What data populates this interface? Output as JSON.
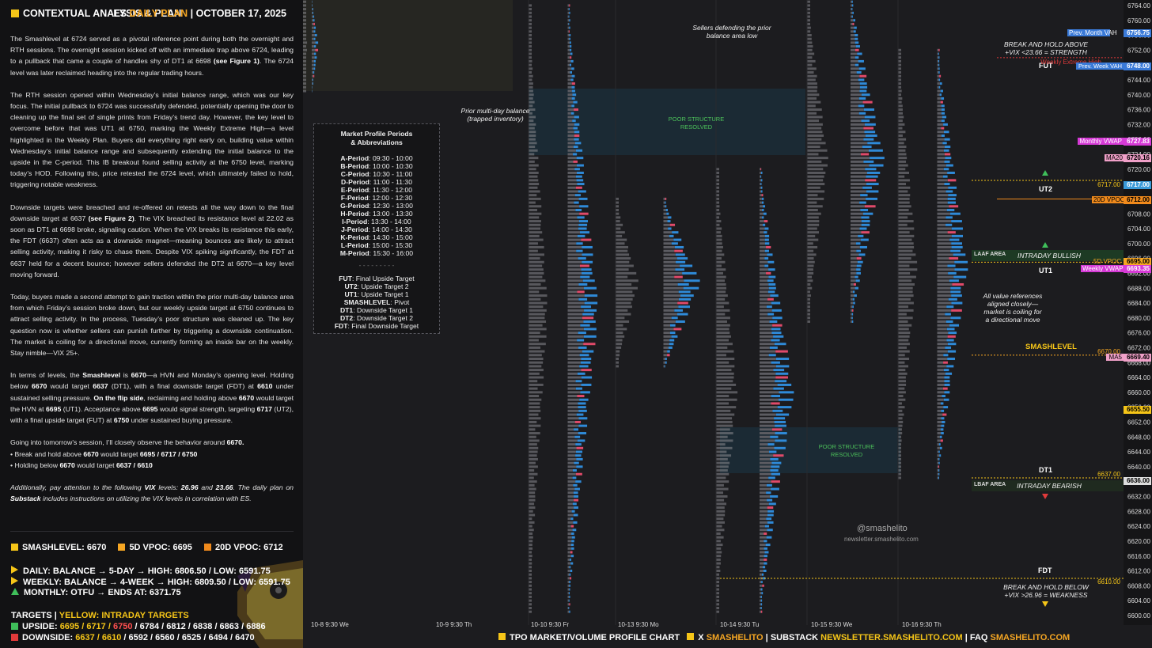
{
  "header": {
    "title": "CONTEXTUAL ANALYSIS & PLAN",
    "es": "ES",
    "daily_plan": "DAILY PLAN",
    "date": "OCTOBER 17, 2025"
  },
  "body": {
    "p1_a": "The Smashlevel at 6724 served as a pivotal reference point during both the overnight and RTH sessions. The overnight session kicked off with an immediate trap above 6724, leading to a pullback that came a couple of handles shy of DT1 at 6698 ",
    "p1_b": "(see Figure 1)",
    "p1_c": ". The 6724 level was later reclaimed heading into the regular trading hours.",
    "p2": "The RTH session opened within Wednesday’s initial balance range, which was our key focus. The initial pullback to 6724 was successfully defended, potentially opening the door to cleaning up the final set of single prints from Friday’s trend day. However, the key level to overcome before that was UT1 at 6750, marking the Weekly Extreme High—a level highlighted in the Weekly Plan. Buyers did everything right early on, building value within Wednesday’s initial balance range and subsequently extending the initial balance to the upside in the C-period. This IB breakout found selling activity at the 6750 level, marking today’s HOD. Following this, price retested the 6724 level, which ultimately failed to hold, triggering notable weakness.",
    "p3_a": "Downside targets were breached and re-offered on retests all the way down to the final downside target at 6637 ",
    "p3_b": "(see Figure 2)",
    "p3_c": ". The VIX breached its resistance level at 22.02 as soon as DT1 at 6698 broke, signaling caution. When the VIX breaks its resistance this early, the FDT (6637) often acts as a downside magnet—meaning bounces are likely to attract selling activity, making it risky to chase them. Despite VIX spiking significantly, the FDT at 6637 held for a decent bounce; however sellers defended the DT2 at 6670—a key level moving forward.",
    "p4": "Today, buyers made a second attempt to gain traction within the prior multi-day balance area from which Friday’s session broke down, but our weekly upside target at 6750 continues to attract selling activity. In the process, Tuesday’s poor structure was cleaned up. The key question now is whether sellers can punish further by triggering a downside continuation. The market is coiling for a directional move, currently forming an inside bar on the weekly. Stay nimble—VIX 25+.",
    "p5_a": "In terms of levels, the ",
    "p5_b": "Smashlevel",
    "p5_c": " is ",
    "p5_d": "6670",
    "p5_e": "—a HVN and Monday’s opening level. Holding below ",
    "p5_f": "6670",
    "p5_g": " would target ",
    "p5_h": "6637",
    "p5_i": " (DT1), with a final downside target (FDT) at ",
    "p5_j": "6610",
    "p5_k": " under sustained selling pressure. ",
    "p5_l": "On the flip side",
    "p5_m": ", reclaiming and holding above ",
    "p5_n": "6670",
    "p5_o": " would target the HVN at ",
    "p5_p": "6695",
    "p5_q": " (UT1). Acceptance above ",
    "p5_r": "6695",
    "p5_s": " would signal strength, targeting ",
    "p5_t": "6717",
    "p5_u": " (UT2), with a final upside target (FUT) at ",
    "p5_v": "6750",
    "p5_w": " under sustained buying pressure.",
    "p6_a": "Going into tomorrow’s session, I’ll closely observe the behavior around ",
    "p6_b": "6670.",
    "p6_c": "• Break and hold above ",
    "p6_d": "6670",
    "p6_e": " would target ",
    "p6_f": "6695 / 6717 / 6750",
    "p6_g": "• Holding below ",
    "p6_h": "6670",
    "p6_i": " would target ",
    "p6_j": "6637 / 6610",
    "p7_a": "Additionally, pay attention to the following ",
    "p7_b": "VIX",
    "p7_c": " levels: ",
    "p7_d": "26.96",
    "p7_e": " and ",
    "p7_f": "23.66",
    "p7_g": ". The daily plan on ",
    "p7_h": "Substack",
    "p7_i": " includes instructions on utilizing the VIX levels in correlation with ES."
  },
  "levels": {
    "smash": "SMASHLEVEL: 6670",
    "vpoc5": "5D VPOC: 6695",
    "vpoc20": "20D VPOC: 6712",
    "smash_color": "#f5c518",
    "vpoc5_color": "#f5a623",
    "vpoc20_color": "#f08a1c"
  },
  "balances": {
    "daily": "DAILY: BALANCE → 5-DAY → HIGH: 6806.50 / LOW: 6591.75",
    "weekly": "WEEKLY: BALANCE → 4-WEEK → HIGH: 6809.50 / LOW: 6591.75",
    "monthly": "MONTHLY: OTFU → ENDS AT: 6371.75"
  },
  "targets": {
    "title_a": "TARGETS",
    "title_b": "YELLOW: INTRADAY TARGETS",
    "up_label": "UPSIDE:",
    "up_1": "6695 / 6717 /",
    "up_2": "6750",
    "up_3": "/ 6784 / 6812 / 6838 / 6863 / 6886",
    "down_label": "DOWNSIDE:",
    "down_1": "6637 / 6610",
    "down_2": "/ 6592 / 6560 / 6525 / 6494 / 6470"
  },
  "legend": {
    "title_1": "Market Profile Periods",
    "title_2": "& Abbreviations",
    "periods": [
      [
        "A-Period",
        "09:30 - 10:00"
      ],
      [
        "B-Period",
        "10:00 - 10:30"
      ],
      [
        "C-Period",
        "10:30 - 11:00"
      ],
      [
        "D-Period",
        "11:00 - 11:30"
      ],
      [
        "E-Period",
        "11:30 - 12:00"
      ],
      [
        "F-Period",
        "12:00 - 12:30"
      ],
      [
        "G-Period",
        "12:30 - 13:00"
      ],
      [
        "H-Period",
        "13:00 - 13:30"
      ],
      [
        "I-Period",
        "13:30 - 14:00"
      ],
      [
        "J-Period",
        "14:00 - 14:30"
      ],
      [
        "K-Period",
        "14:30 - 15:00"
      ],
      [
        "L-Period",
        "15:00 - 15:30"
      ],
      [
        "M-Period",
        "15:30 - 16:00"
      ]
    ],
    "sep": "- - - - - - - - -",
    "abbr": [
      [
        "FUT",
        "Final Upside Target"
      ],
      [
        "UT2",
        "Upside Target 2"
      ],
      [
        "UT1",
        "Upside Target 1"
      ],
      [
        "SMASHLEVEL",
        "Pivot"
      ],
      [
        "DT1",
        "Downside Target 1"
      ],
      [
        "DT2",
        "Downside Target 2"
      ],
      [
        "FDT",
        "Final Downside Target"
      ]
    ]
  },
  "annotations": {
    "prior_balance": "Prior multi-day balance\n(trapped inventory)",
    "sellers_defending": "Sellers defending the prior\nbalance area low",
    "poor_1": "POOR STRUCTURE\nRESOLVED",
    "poor_2": "POOR STRUCTURE\nRESOLVED",
    "break_above": "BREAK AND HOLD ABOVE\n+VIX <23.66 = STRENGTH",
    "break_below": "BREAK AND HOLD BELOW\n+VIX >26.96 = WEAKNESS",
    "value_refs": "All value references\naligned closely—\nmarket is coiling for\na directional move",
    "intraday_bullish": "INTRADAY BULLISH",
    "intraday_bearish": "INTRADAY BEARISH",
    "laaf": "LAAF AREA",
    "lbaf": "LBAF AREA",
    "handle": "@smashelito",
    "site": "newsletter.smashelito.com"
  },
  "level_tags": {
    "fut": "FUT",
    "ut2": "UT2",
    "ut1": "UT1",
    "smashlevel": "SMASHLEVEL",
    "dt1": "DT1",
    "fdt": "FDT"
  },
  "price_labels": {
    "prev_month_vah": "Prev. Month VAH",
    "weekly_ext_high": "Weekly Extreme High",
    "prev_week_vah": "Prev. Week VAH",
    "monthly_vwap": "Monthly VWAP",
    "ma20": "MA20",
    "vpoc20": "20D VPOC",
    "vpoc5": "5D VPOC",
    "weekly_vwap": "Weekly VWAP",
    "ma5": "MA5",
    "smash_price": "6670.00",
    "ut2_price": "6717.00",
    "dt1_price": "6637.00",
    "fdt_price": "6610.00",
    "vpoc20_price": "6712.00",
    "vpoc5_price": "6695.00",
    "prev_month_vah_price": "6756.75",
    "prev_week_vah_price": "6748.00",
    "monthly_vwap_price": "6727.83",
    "ma20_price": "6720.16",
    "weekly_vwap_price": "6693.35",
    "ma5_price": "6669.40",
    "last_price": "6655.50",
    "low_price": "6636.00"
  },
  "xaxis": [
    "10-8  9:30 We",
    "10-9  9:30 Th",
    "10-10  9:30 Fr",
    "10-13  9:30 Mo",
    "10-14  9:30 Tu",
    "10-15  9:30 We",
    "10-16  9:30 Th"
  ],
  "footer": {
    "chart_title": "TPO MARKET/VOLUME PROFILE CHART",
    "x_label": "X",
    "x_handle": "SMASHELITO",
    "substack": "SUBSTACK",
    "substack_url": "NEWSLETTER.SMASHELITO.COM",
    "faq": "FAQ",
    "faq_url": "SMASHELITO.COM"
  },
  "chart_data": {
    "type": "heatmap",
    "title": "",
    "y_ticks": [
      6764,
      6760,
      6756,
      6752,
      6748,
      6744,
      6740,
      6736,
      6732,
      6728,
      6724,
      6720,
      6716,
      6712,
      6708,
      6704,
      6700,
      6696,
      6692,
      6688,
      6684,
      6680,
      6676,
      6672,
      6668,
      6664,
      6660,
      6656,
      6652,
      6648,
      6644,
      6640,
      6636,
      6632,
      6628,
      6624,
      6620,
      6616,
      6612,
      6608,
      6604,
      6600
    ],
    "ylim": [
      6599,
      6766
    ],
    "sessions": [
      "10-8",
      "10-9",
      "10-10",
      "10-13",
      "10-14",
      "10-15",
      "10-16"
    ],
    "levels": {
      "FUT": 6750,
      "UT2": 6717,
      "UT1": 6695,
      "SMASHLEVEL": 6670,
      "DT1": 6637,
      "FDT": 6610
    },
    "session_ranges": [
      {
        "session": "10-8",
        "high": 6766,
        "low": 6740
      },
      {
        "session": "10-10",
        "high": 6764,
        "low": 6600
      },
      {
        "session": "10-13",
        "high": 6712,
        "low": 6666
      },
      {
        "session": "10-14",
        "high": 6720,
        "low": 6600
      },
      {
        "session": "10-15",
        "high": 6766,
        "low": 6678
      },
      {
        "session": "10-16",
        "high": 6752,
        "low": 6636
      }
    ]
  }
}
